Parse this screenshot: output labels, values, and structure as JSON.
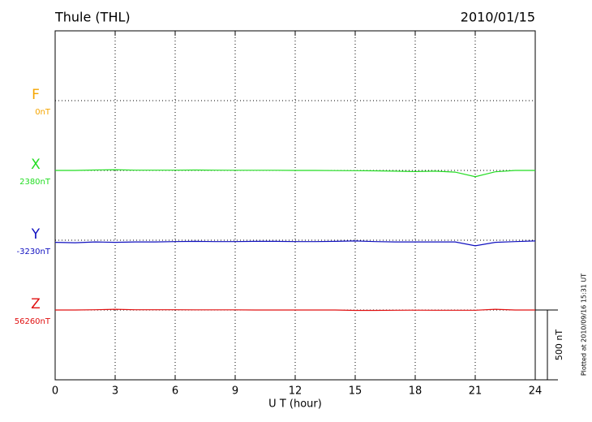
{
  "chart_data": {
    "type": "line",
    "title": "Thule (THL)",
    "date": "2010/01/15",
    "x_label": "U T (hour)",
    "footer": "Plotted at 2010/09/16 15:31 UT",
    "x": [
      0,
      1,
      2,
      3,
      4,
      5,
      6,
      7,
      8,
      9,
      10,
      11,
      12,
      13,
      14,
      15,
      16,
      17,
      18,
      19,
      20,
      21,
      22,
      23,
      24
    ],
    "xlim": [
      0,
      24
    ],
    "xticks": [
      0,
      3,
      6,
      9,
      12,
      15,
      18,
      21,
      24
    ],
    "grid": true,
    "scale_bar": {
      "value": 500,
      "label": "500 nT"
    },
    "series": [
      {
        "name": "F",
        "color": "#f5a500",
        "baseline": {
          "value": 0,
          "label": "0nT"
        },
        "values": [
          null,
          null,
          null,
          null,
          null,
          null,
          null,
          null,
          null,
          null,
          null,
          null,
          null,
          null,
          null,
          null,
          null,
          null,
          null,
          null,
          null,
          null,
          null,
          null,
          null
        ]
      },
      {
        "name": "X",
        "color": "#22dd22",
        "baseline": {
          "value": 2380,
          "label": "2380nT"
        },
        "values": [
          0,
          0,
          3,
          5,
          2,
          2,
          2,
          3,
          2,
          1,
          1,
          1,
          0,
          0,
          -1,
          -2,
          -3,
          -5,
          -8,
          -5,
          -12,
          -45,
          -10,
          0,
          0
        ]
      },
      {
        "name": "Y",
        "color": "#1010c0",
        "baseline": {
          "value": -3230,
          "label": "-3230nT"
        },
        "values": [
          -15,
          -18,
          -12,
          -15,
          -12,
          -12,
          -10,
          -8,
          -10,
          -10,
          -8,
          -8,
          -10,
          -10,
          -8,
          -5,
          -10,
          -12,
          -12,
          -12,
          -12,
          -40,
          -15,
          -10,
          -5
        ]
      },
      {
        "name": "Z",
        "color": "#e01010",
        "baseline": {
          "value": 56260,
          "label": "56260nT"
        },
        "values": [
          0,
          0,
          2,
          5,
          2,
          2,
          2,
          1,
          1,
          1,
          0,
          0,
          0,
          0,
          0,
          -3,
          -3,
          -2,
          -1,
          -2,
          -2,
          -2,
          5,
          0,
          0
        ]
      }
    ]
  }
}
